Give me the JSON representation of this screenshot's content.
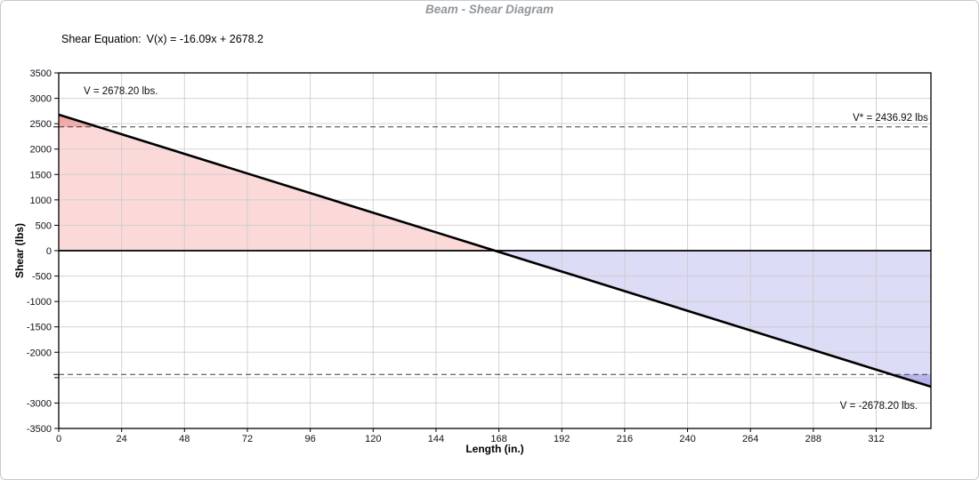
{
  "header": {
    "title": "Beam - Shear Diagram"
  },
  "equation": {
    "label": "Shear Equation:",
    "formula": "V(x) = -16.09x + 2678.2"
  },
  "chart_data": {
    "type": "area",
    "title": "Beam - Shear Diagram",
    "xlabel": "Length (in.)",
    "ylabel": "Shear (lbs)",
    "xlim": [
      0,
      332.89
    ],
    "ylim": [
      -3500,
      3500
    ],
    "grid": true,
    "x_ticks": [
      0,
      24,
      48,
      72,
      96,
      120,
      144,
      168,
      192,
      216,
      240,
      264,
      288,
      312
    ],
    "y_ticks": [
      3500,
      3000,
      2500,
      2000,
      1500,
      1000,
      500,
      0,
      -500,
      -1000,
      -1500,
      -2000,
      -2500,
      -3000,
      -3500
    ],
    "y_ticks_unlabeled": [
      -2500
    ],
    "line": {
      "slope": -16.09,
      "intercept": 2678.2,
      "x_start": 0,
      "x_end": 332.89,
      "v_start": 2678.2,
      "v_end": -2678.2
    },
    "v_star": 2436.92,
    "series": [
      {
        "name": "Shear V(x)",
        "x": [
          0,
          332.89
        ],
        "y": [
          2678.2,
          -2678.2
        ]
      }
    ],
    "annotations": [
      {
        "text": "V = 2678.20 lbs.",
        "x": 9.5,
        "y": 3140,
        "h_align": "left"
      },
      {
        "text": "V* = 2436.92 lbs",
        "x": 332.5,
        "y": 2610,
        "h_align": "right"
      },
      {
        "text": "V = -2678.20 lbs.",
        "x": 328.5,
        "y": -3060,
        "h_align": "right"
      }
    ],
    "colors": {
      "fill_positive": "#fbd9d9",
      "fill_positive_excess": "#f4a6a6",
      "fill_negative": "#dcdcf6",
      "fill_negative_excess": "#b2b2ee",
      "shear_line": "#000000",
      "zero_axis": "#000000",
      "grid": "#c9c9c9",
      "dashed": "#3f3f3f",
      "frame": "#000000",
      "tick_label": "#10101a",
      "title": "#90969d"
    }
  }
}
